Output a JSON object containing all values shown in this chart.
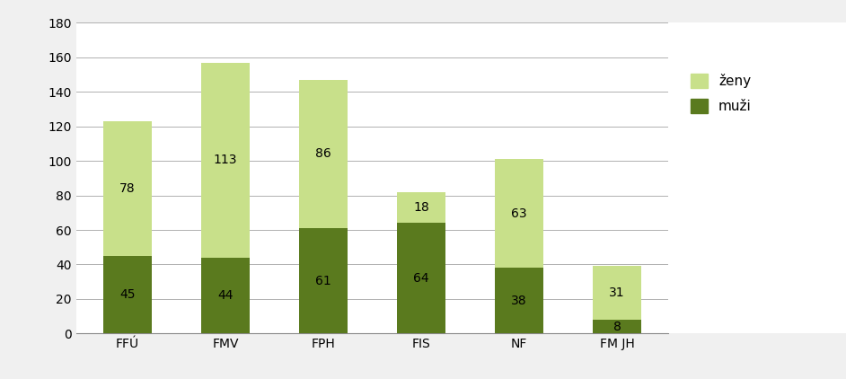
{
  "categories": [
    "FFÚ",
    "FMV",
    "FPH",
    "FIS",
    "NF",
    "FM JH"
  ],
  "muzi": [
    45,
    44,
    61,
    64,
    38,
    8
  ],
  "zeny": [
    78,
    113,
    86,
    18,
    63,
    31
  ],
  "color_muzi": "#5a7a1e",
  "color_zeny": "#c8e08a",
  "ylim": [
    0,
    180
  ],
  "yticks": [
    0,
    20,
    40,
    60,
    80,
    100,
    120,
    140,
    160,
    180
  ],
  "legend_zeny": "ženy",
  "legend_muzi": "muži",
  "background_color": "#f0f0f0",
  "plot_background": "#ffffff",
  "bar_width": 0.5
}
